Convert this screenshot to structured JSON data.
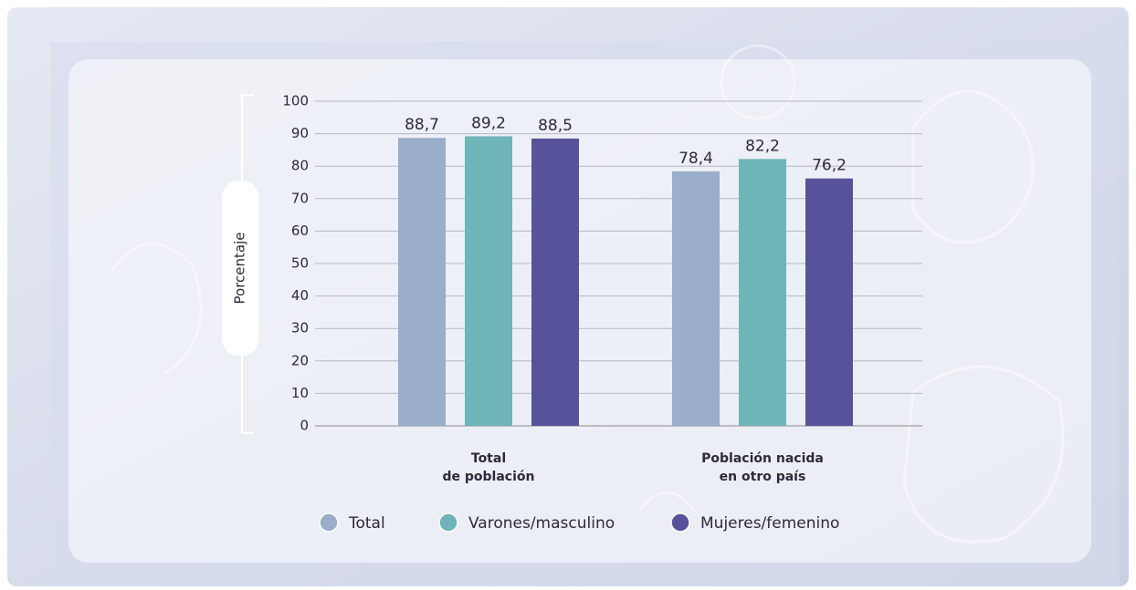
{
  "chart_data": {
    "type": "bar",
    "y_label": "Porcentaje",
    "categories": [
      [
        "Total",
        "de población"
      ],
      [
        "Población nacida",
        "en otro país"
      ]
    ],
    "series": [
      {
        "name": "Total",
        "color": "#9aaecb",
        "values": [
          88.7,
          78.4
        ],
        "value_labels": [
          "88,7",
          "78,4"
        ]
      },
      {
        "name": "Varones/masculino",
        "color": "#6fb5b8",
        "values": [
          89.2,
          82.2
        ],
        "value_labels": [
          "89,2",
          "82,2"
        ]
      },
      {
        "name": "Mujeres/femenino",
        "color": "#57539b",
        "values": [
          88.5,
          76.2
        ],
        "value_labels": [
          "88,5",
          "76,2"
        ]
      }
    ],
    "ylim": [
      0,
      100
    ],
    "yticks": [
      0,
      10,
      20,
      30,
      40,
      50,
      60,
      70,
      80,
      90,
      100
    ],
    "grid": true
  }
}
